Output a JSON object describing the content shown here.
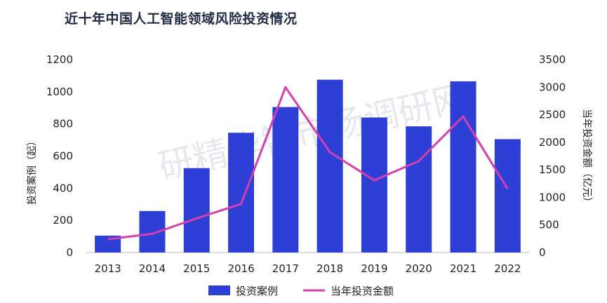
{
  "chart_data": {
    "type": "bar",
    "title": "近十年中国人工智能领域风险投资情况",
    "categories": [
      "2013",
      "2014",
      "2015",
      "2016",
      "2017",
      "2018",
      "2019",
      "2020",
      "2021",
      "2022"
    ],
    "series": [
      {
        "name": "投资案例",
        "type": "bar",
        "axis": "left",
        "color": "#2d3fd4",
        "values": [
          105,
          258,
          525,
          745,
          905,
          1075,
          840,
          785,
          1065,
          705
        ]
      },
      {
        "name": "当年投资金额",
        "type": "line",
        "axis": "right",
        "color": "#d43fb0",
        "values": [
          240,
          340,
          620,
          880,
          3000,
          1820,
          1310,
          1660,
          2470,
          1150
        ]
      }
    ],
    "ylabel": "投资案例（起）",
    "y2label": "当年投资金额（亿元）",
    "ylim": [
      0,
      1200
    ],
    "y2lim": [
      0,
      3500
    ],
    "yticks": [
      0,
      200,
      400,
      600,
      800,
      1000,
      1200
    ],
    "y2ticks": [
      0,
      500,
      1000,
      1500,
      2000,
      2500,
      3000,
      3500
    ],
    "legend": "bottom",
    "watermark": "研精毕智市场调研网"
  }
}
